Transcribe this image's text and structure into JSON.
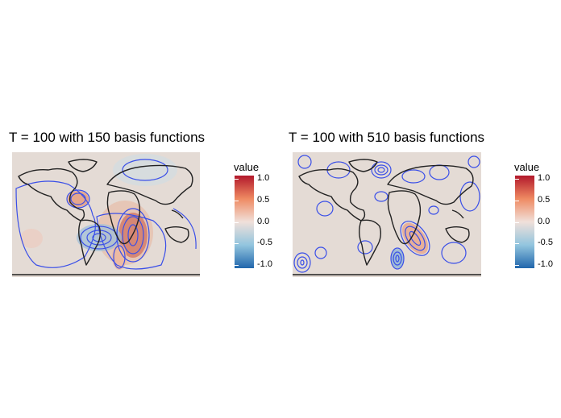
{
  "chart_data": [
    {
      "type": "heatmap",
      "title": "T = 100 with 150 basis functions",
      "legend": {
        "title": "value",
        "ticks": [
          1.0,
          0.5,
          0.0,
          -0.5,
          -1.0
        ],
        "tick_labels": [
          "1.0",
          "0.5",
          "0.0",
          "-0.5",
          "-1.0"
        ],
        "range": [
          -1.0,
          1.0
        ],
        "placement": "right"
      },
      "colors": {
        "high": "#b2182b",
        "mid": "#f0e0da",
        "low": "#2166ac",
        "map_background": "#e4dbd5",
        "contour": "#3a4fe8",
        "coastline": "#222222"
      },
      "features": [
        {
          "region": "South Atlantic / Southern Africa",
          "value": 0.9
        },
        {
          "region": "Gulf of Mexico",
          "value": 0.5
        },
        {
          "region": "South America interior",
          "value": -0.6
        },
        {
          "region": "North Pole",
          "value": -0.2
        }
      ]
    },
    {
      "type": "heatmap",
      "title": "T = 100 with 510 basis functions",
      "legend": {
        "title": "value",
        "ticks": [
          1.0,
          0.5,
          0.0,
          -0.5,
          -1.0
        ],
        "tick_labels": [
          "1.0",
          "0.5",
          "0.0",
          "-0.5",
          "-1.0"
        ],
        "range": [
          -1.0,
          1.0
        ],
        "placement": "right"
      },
      "colors": {
        "high": "#b2182b",
        "mid": "#f0e0da",
        "low": "#2166ac",
        "map_background": "#e4dbd5",
        "contour": "#3a4fe8",
        "coastline": "#222222"
      },
      "features": [
        {
          "region": "South Atlantic",
          "value": 0.6
        },
        {
          "region": "North Atlantic",
          "value": -0.5
        },
        {
          "region": "Southern Ocean",
          "value": -0.4
        }
      ]
    }
  ]
}
